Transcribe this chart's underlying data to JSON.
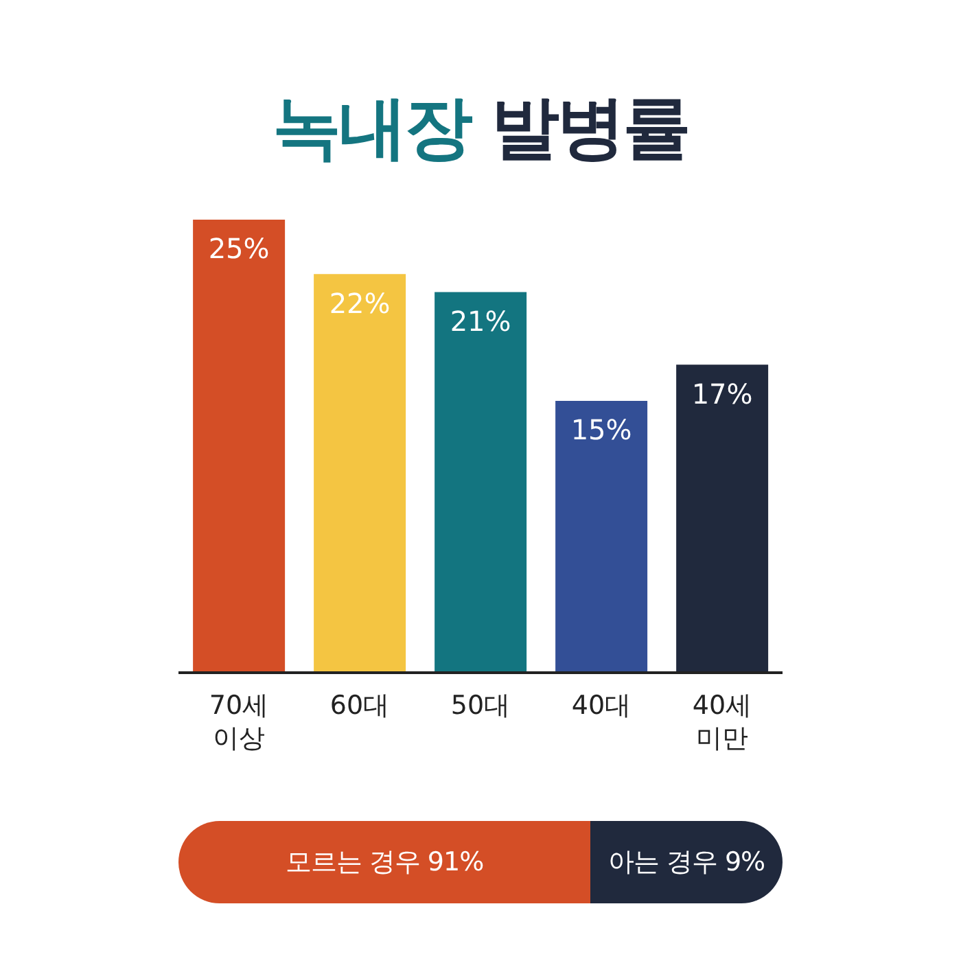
{
  "chart_data": [
    {
      "type": "bar",
      "title": "녹내장 발병률",
      "categories": [
        "70세 이상",
        "60대",
        "50대",
        "40대",
        "40세 미만"
      ],
      "values": [
        25,
        22,
        21,
        15,
        17
      ],
      "colors": [
        "#d44e26",
        "#f4c542",
        "#137580",
        "#334f96",
        "#20293d"
      ],
      "value_labels": [
        "25%",
        "22%",
        "21%",
        "15%",
        "17%"
      ],
      "legend": false,
      "grid": false
    },
    {
      "type": "other",
      "categories": [
        "모르는 경우",
        "아는 경우"
      ],
      "values": [
        91,
        9
      ],
      "value_labels": [
        "91%",
        "9%"
      ],
      "colors": [
        "#d44e26",
        "#20293d"
      ]
    }
  ]
}
